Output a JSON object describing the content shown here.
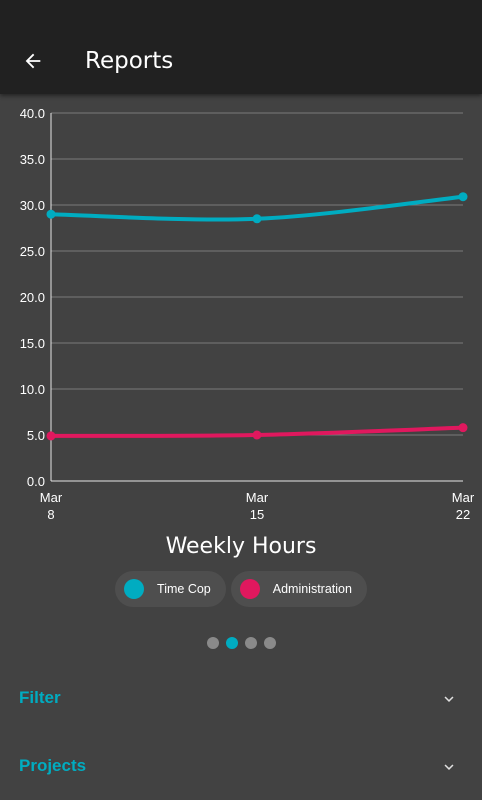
{
  "appbar": {
    "title": "Reports",
    "back_icon": "arrow-back-icon"
  },
  "chart_data": {
    "type": "line",
    "title": "Weekly Hours",
    "categories": [
      "Mar\n8",
      "Mar\n15",
      "Mar\n22"
    ],
    "ylim": [
      0,
      40
    ],
    "yticks": [
      "0.0",
      "5.0",
      "10.0",
      "15.0",
      "20.0",
      "25.0",
      "30.0",
      "35.0",
      "40.0"
    ],
    "grid": true,
    "series": [
      {
        "name": "Time Cop",
        "color": "#00acc1",
        "values": [
          29.0,
          28.5,
          30.9
        ]
      },
      {
        "name": "Administration",
        "color": "#e0185e",
        "values": [
          4.9,
          5.0,
          5.8
        ]
      }
    ]
  },
  "pager": {
    "count": 4,
    "active_index": 1
  },
  "sections": [
    {
      "label": "Filter",
      "icon": "chevron-down-icon"
    },
    {
      "label": "Projects",
      "icon": "chevron-down-icon"
    }
  ]
}
